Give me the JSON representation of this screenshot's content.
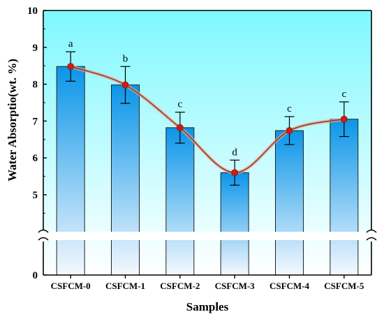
{
  "chart_data": {
    "type": "bar",
    "xlabel": "Samples",
    "ylabel": "Water Absorptio(wt. %)",
    "categories": [
      "CSFCM-0",
      "CSFCM-1",
      "CSFCM-2",
      "CSFCM-3",
      "CSFCM-4",
      "CSFCM-5"
    ],
    "values": [
      8.48,
      7.98,
      6.82,
      5.6,
      6.74,
      7.05
    ],
    "errors": [
      0.4,
      0.5,
      0.42,
      0.34,
      0.38,
      0.47
    ],
    "significance": [
      "a",
      "b",
      "c",
      "d",
      "c",
      "c"
    ],
    "ylim": [
      0,
      10
    ],
    "axis_break": [
      0.35,
      4.0
    ],
    "yticks": [
      0,
      5,
      6,
      7,
      8,
      9,
      10
    ],
    "grid": false,
    "overlay": "smooth line through bar means with red dot markers",
    "colors": {
      "background_top": "#7ff8ff",
      "background_bottom": "#ffffff",
      "bar_top": "#0a95e8",
      "bar_bottom": "#f4f8fe",
      "line": "#7a4a1c",
      "line_glow": "#ff9a9a",
      "marker": "#d41818"
    }
  }
}
